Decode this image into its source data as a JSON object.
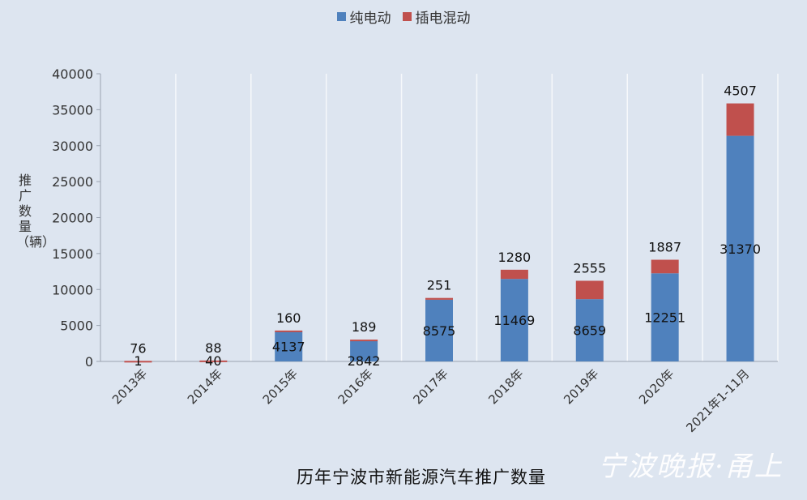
{
  "title": "历年宁波市新能源汽车推广数量",
  "ylabel": "推广数量（辆）",
  "watermark": "宁波晚报·甬上",
  "chart_data": {
    "type": "bar",
    "stacked": true,
    "categories": [
      "2013年",
      "2014年",
      "2015年",
      "2016年",
      "2017年",
      "2018年",
      "2019年",
      "2020年",
      "2021年1-11月"
    ],
    "series": [
      {
        "name": "纯电动",
        "color": "#4f81bd",
        "values": [
          1,
          40,
          4137,
          2842,
          8575,
          11469,
          8659,
          12251,
          31370
        ]
      },
      {
        "name": "插电混动",
        "color": "#c0504d",
        "values": [
          76,
          88,
          160,
          189,
          251,
          1280,
          2555,
          1887,
          4507
        ]
      }
    ],
    "ylim": [
      0,
      40000
    ],
    "yticks": [
      0,
      5000,
      10000,
      15000,
      20000,
      25000,
      30000,
      35000,
      40000
    ],
    "legend": "top-center",
    "grid": false
  }
}
